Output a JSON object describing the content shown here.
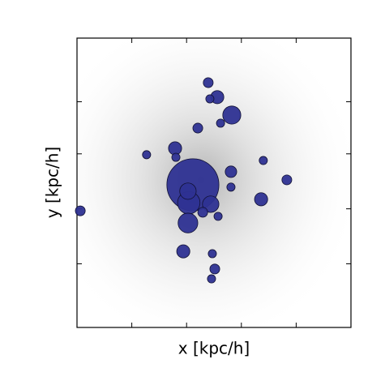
{
  "chart_data": {
    "type": "scatter",
    "xlabel": "x [kpc/h]",
    "ylabel": "y [kpc/h]",
    "xlim": [
      0,
      100
    ],
    "ylim": [
      0,
      100
    ],
    "xticks": [
      20,
      40,
      60,
      80
    ],
    "yticks": [
      22,
      41,
      60,
      78
    ],
    "color": "#2e3192",
    "series": [
      {
        "x": [
          42.3,
          40.8,
          40.5,
          40.5,
          48.8,
          45.9,
          47.9,
          51.2,
          48.5,
          56.5,
          52.4,
          44.1,
          35.8,
          36.1,
          25.4,
          56.2,
          56.2,
          68.0,
          76.6,
          67.2,
          51.5,
          1.2,
          38.8,
          49.4,
          50.3,
          49.1
        ],
        "values": [
          49.3,
          43.1,
          47.1,
          36.1,
          42.6,
          39.8,
          84.6,
          79.6,
          79.0,
          73.4,
          70.6,
          68.9,
          61.9,
          58.8,
          59.7,
          53.8,
          48.5,
          57.7,
          51.0,
          44.3,
          38.4,
          40.3,
          26.3,
          25.5,
          20.2,
          16.8
        ],
        "sizes": [
          9.5,
          4.1,
          3.0,
          3.6,
          3.0,
          1.8,
          1.8,
          2.4,
          1.5,
          3.3,
          1.5,
          1.8,
          2.4,
          1.5,
          1.5,
          2.1,
          1.5,
          1.5,
          1.8,
          2.4,
          1.5,
          1.8,
          2.4,
          1.5,
          1.8,
          1.5
        ]
      }
    ]
  }
}
